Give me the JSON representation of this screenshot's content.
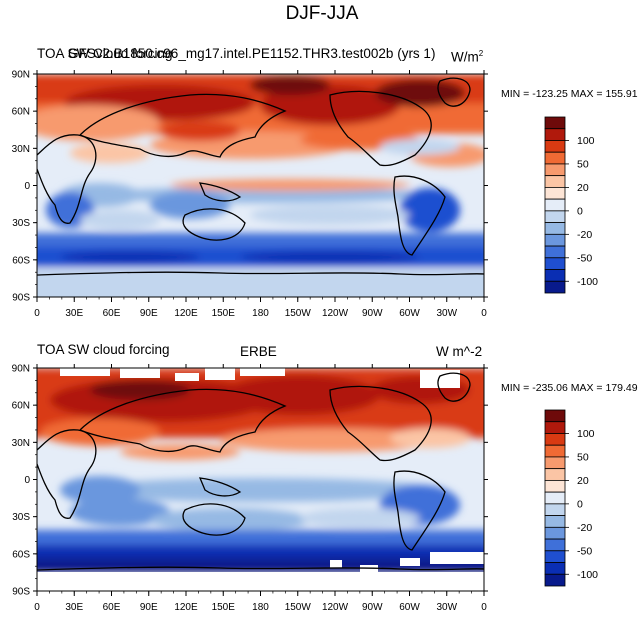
{
  "figure_title": "DJF-JJA",
  "panels": [
    {
      "title_left": "TOA SW Cloud forcing",
      "title_center": "GFSv2.B1850.c96_mg17.intel.PE1152.THR3.test002b (yrs 1)",
      "units_base": "W/m",
      "units_exp": "2",
      "stats": "MIN = -123.25 MAX = 155.91"
    },
    {
      "title_left": "TOA SW cloud forcing",
      "title_center": "ERBE",
      "units_base": "W m^-2",
      "units_exp": "",
      "stats": "MIN = -235.06 MAX = 179.49"
    }
  ],
  "lat_labels": [
    "90N",
    "60N",
    "30N",
    "0",
    "30S",
    "60S",
    "90S"
  ],
  "lon_labels": [
    "0",
    "30E",
    "60E",
    "90E",
    "120E",
    "150E",
    "180",
    "150W",
    "120W",
    "90W",
    "60W",
    "30W",
    "0"
  ],
  "colorbar": {
    "colors": [
      "#6e0a0a",
      "#b0190c",
      "#d93a12",
      "#f06a34",
      "#f79a6e",
      "#fbc5a5",
      "#fde5d6",
      "#e5edf8",
      "#c2d6ee",
      "#96b9e4",
      "#6b97de",
      "#3f70d9",
      "#1f4fd0",
      "#0a2eb3",
      "#081a8c"
    ],
    "labels": [
      "100",
      "50",
      "20",
      "0",
      "-20",
      "-50",
      "-100"
    ]
  },
  "palette": {
    "ocean_zero": "#e5edf8",
    "coast": "#000000",
    "missing": "#ffffff"
  }
}
